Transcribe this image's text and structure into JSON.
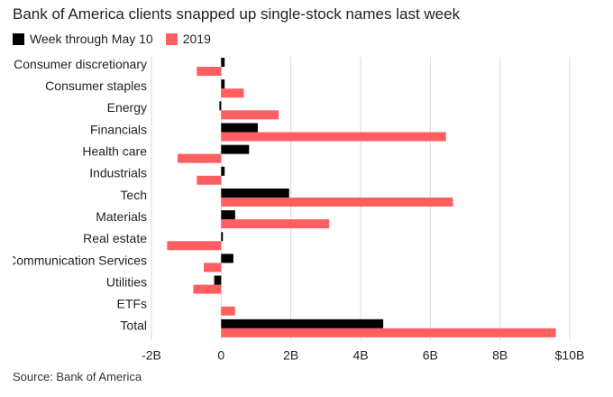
{
  "title": "Bank of America clients snapped up single-stock names last week",
  "legend": [
    {
      "label": "Week through May 10",
      "color": "#000000"
    },
    {
      "label": "2019",
      "color": "#ff5f61"
    }
  ],
  "source": "Source: Bank of America",
  "chart_data": {
    "type": "bar",
    "orientation": "horizontal",
    "categories": [
      "Consumer discretionary",
      "Consumer staples",
      "Energy",
      "Financials",
      "Health care",
      "Industrials",
      "Tech",
      "Materials",
      "Real estate",
      "Communication Services",
      "Utilities",
      "ETFs",
      "Total"
    ],
    "series": [
      {
        "name": "Week through May 10",
        "color": "#000000",
        "values": [
          0.1,
          0.1,
          -0.05,
          1.05,
          0.8,
          0.1,
          1.95,
          0.4,
          0.05,
          0.35,
          -0.2,
          0.0,
          4.65
        ]
      },
      {
        "name": "2019",
        "color": "#ff5f61",
        "values": [
          -0.7,
          0.65,
          1.65,
          6.45,
          -1.25,
          -0.7,
          6.65,
          3.1,
          -1.55,
          -0.5,
          -0.8,
          0.4,
          9.6
        ]
      }
    ],
    "xlim": [
      -2,
      10
    ],
    "xticks": [
      -2,
      0,
      2,
      4,
      6,
      8,
      10
    ],
    "xtick_labels": [
      "-2B",
      "0",
      "2B",
      "4B",
      "6B",
      "8B",
      "$10B"
    ],
    "grid": true,
    "legend_position": "top-left"
  }
}
